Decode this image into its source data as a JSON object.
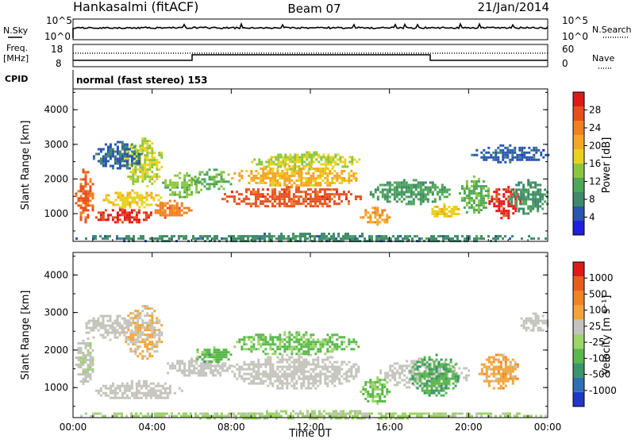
{
  "header": {
    "station": "Hankasalmi (fitACF)",
    "beam": "Beam 07",
    "date": "21/Jan/2014"
  },
  "noise_panel": {
    "left_label": "N.Sky",
    "right_label": "N.Search",
    "left_ticks": [
      "10^5",
      "10^0"
    ],
    "right_ticks": [
      "10^5",
      "10^0"
    ]
  },
  "freq_panel": {
    "left_label_line1": "Freq.",
    "left_label_line2": "[MHz]",
    "right_label": "Nave",
    "left_ticks": [
      "18",
      "8"
    ],
    "right_ticks": [
      "60",
      "0"
    ]
  },
  "cpid": {
    "label": "CPID",
    "text": "normal (fast stereo) 153"
  },
  "colors": {
    "power_scale": [
      "#1f1fe0",
      "#2a55b0",
      "#3f8a6a",
      "#4fa75a",
      "#8cc63f",
      "#e8d21e",
      "#f5a623",
      "#f08020",
      "#e84d1c",
      "#e01818"
    ],
    "velocity_scale": [
      "#2038c8",
      "#2e6fb4",
      "#39956a",
      "#58b84a",
      "#9cd46a",
      "#c4c4bc",
      "#f2a43a",
      "#f08424",
      "#e85c1c",
      "#e01818"
    ],
    "ground_scatter": "#c4c4bc"
  },
  "chart_data": [
    {
      "type": "heatmap",
      "name": "power",
      "ylabel": "Slant Range [km]",
      "colorbar_label": "Power [dB]",
      "colorbar_ticks": [
        "28",
        "24",
        "20",
        "16",
        "12",
        "8",
        "4"
      ],
      "colorbar_range": [
        0,
        32
      ],
      "xlim": [
        "00:00",
        "24:00"
      ],
      "ylim": [
        200,
        4600
      ],
      "y_ticks": [
        "1000",
        "2000",
        "3000",
        "4000"
      ],
      "x_ticks": [
        "00:00",
        "04:00",
        "08:00",
        "12:00",
        "16:00",
        "20:00",
        "00:00"
      ],
      "regions": [
        {
          "t": [
            0.1,
            1.0
          ],
          "r": [
            700,
            2300
          ],
          "value": 26
        },
        {
          "t": [
            1.0,
            4.0
          ],
          "r": [
            750,
            1200
          ],
          "value": 29
        },
        {
          "t": [
            1.5,
            4.5
          ],
          "r": [
            1200,
            1700
          ],
          "value": 18
        },
        {
          "t": [
            2.5,
            4.5
          ],
          "r": [
            1800,
            3200
          ],
          "value": 16
        },
        {
          "t": [
            4.0,
            6.0
          ],
          "r": [
            900,
            1400
          ],
          "value": 24
        },
        {
          "t": [
            4.5,
            6.5
          ],
          "r": [
            1500,
            2200
          ],
          "value": 14
        },
        {
          "t": [
            6.0,
            8.0
          ],
          "r": [
            1700,
            2300
          ],
          "value": 12
        },
        {
          "t": [
            7.5,
            14.5
          ],
          "r": [
            1200,
            1800
          ],
          "value": 27
        },
        {
          "t": [
            8.0,
            14.5
          ],
          "r": [
            1800,
            2400
          ],
          "value": 20
        },
        {
          "t": [
            9.0,
            14.5
          ],
          "r": [
            2300,
            2800
          ],
          "value": 16
        },
        {
          "t": [
            14.5,
            16.0
          ],
          "r": [
            700,
            1200
          ],
          "value": 22
        },
        {
          "t": [
            15.0,
            19.0
          ],
          "r": [
            1300,
            2000
          ],
          "value": 10
        },
        {
          "t": [
            18.0,
            19.5
          ],
          "r": [
            900,
            1300
          ],
          "value": 18
        },
        {
          "t": [
            19.5,
            21.0
          ],
          "r": [
            1000,
            2100
          ],
          "value": 12
        },
        {
          "t": [
            21.0,
            22.6
          ],
          "r": [
            900,
            1800
          ],
          "value": 30
        },
        {
          "t": [
            22.0,
            24.0
          ],
          "r": [
            1000,
            2000
          ],
          "value": 9
        },
        {
          "t": [
            1.0,
            3.5
          ],
          "r": [
            2300,
            3100
          ],
          "value": 6
        },
        {
          "t": [
            20.0,
            24.0
          ],
          "r": [
            2500,
            3000
          ],
          "value": 5
        },
        {
          "t": [
            0.0,
            24.0
          ],
          "r": [
            200,
            450
          ],
          "value": 8
        }
      ]
    },
    {
      "type": "heatmap",
      "name": "velocity",
      "ylabel": "Slant Range [km]",
      "xlabel": "Time UT",
      "colorbar_label": "Velocity [m s⁻¹]",
      "colorbar_ticks": [
        "1000",
        "500",
        "100",
        "25",
        "-25",
        "-100",
        "-500",
        "-1000"
      ],
      "colorbar_range": [
        -1000,
        1000
      ],
      "xlim": [
        "00:00",
        "24:00"
      ],
      "ylim": [
        200,
        4600
      ],
      "y_ticks": [
        "1000",
        "2000",
        "3000",
        "4000"
      ],
      "x_ticks": [
        "00:00",
        "04:00",
        "08:00",
        "12:00",
        "16:00",
        "20:00",
        "00:00"
      ],
      "regions": [
        {
          "t": [
            0.1,
            1.0
          ],
          "r": [
            1100,
            2400
          ],
          "value": 80
        },
        {
          "t": [
            1.0,
            5.5
          ],
          "r": [
            700,
            1200
          ],
          "value": 0,
          "ground": true
        },
        {
          "t": [
            2.5,
            4.5
          ],
          "r": [
            1800,
            3200
          ],
          "value": 200
        },
        {
          "t": [
            0.5,
            3.0
          ],
          "r": [
            2300,
            3000
          ],
          "value": 0,
          "ground": true
        },
        {
          "t": [
            4.5,
            8.0
          ],
          "r": [
            1300,
            1800
          ],
          "value": 0,
          "ground": true
        },
        {
          "t": [
            6.0,
            8.0
          ],
          "r": [
            1700,
            2100
          ],
          "value": -300
        },
        {
          "t": [
            8.0,
            14.5
          ],
          "r": [
            1000,
            1900
          ],
          "value": 0,
          "ground": true
        },
        {
          "t": [
            8.0,
            14.5
          ],
          "r": [
            1900,
            2500
          ],
          "value": -250
        },
        {
          "t": [
            14.5,
            16.0
          ],
          "r": [
            600,
            1300
          ],
          "value": -200
        },
        {
          "t": [
            15.5,
            20.0
          ],
          "r": [
            1000,
            1800
          ],
          "value": 0,
          "ground": true
        },
        {
          "t": [
            17.0,
            19.5
          ],
          "r": [
            800,
            1900
          ],
          "value": -350
        },
        {
          "t": [
            20.5,
            22.5
          ],
          "r": [
            1000,
            1900
          ],
          "value": 300
        },
        {
          "t": [
            22.5,
            24.0
          ],
          "r": [
            2500,
            3000
          ],
          "value": 0,
          "ground": true
        },
        {
          "t": [
            0.0,
            24.0
          ],
          "r": [
            200,
            400
          ],
          "value": -50
        }
      ]
    }
  ]
}
